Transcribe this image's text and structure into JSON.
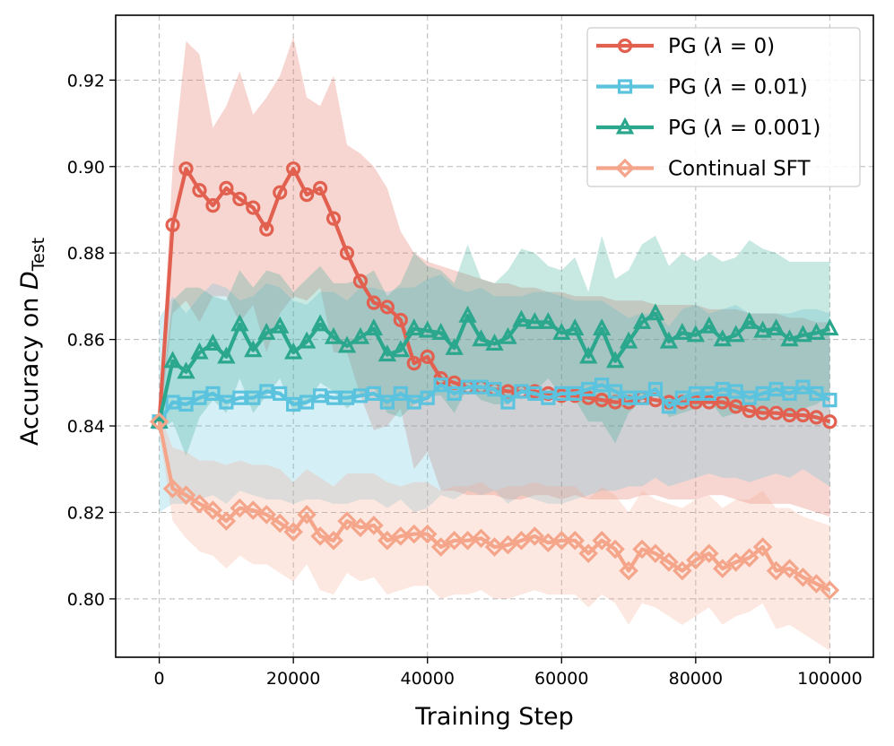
{
  "chart_data": {
    "type": "line",
    "title": "",
    "xlabel": "Training Step",
    "ylabel": {
      "base": "Accuracy on ",
      "symbol": "D",
      "subscript": "Test"
    },
    "xlim": [
      -6500,
      106500
    ],
    "ylim": [
      0.7865,
      0.935
    ],
    "xticks": [
      0,
      20000,
      40000,
      60000,
      80000,
      100000
    ],
    "xtick_labels": [
      "0",
      "20000",
      "40000",
      "60000",
      "80000",
      "100000"
    ],
    "yticks": [
      0.8,
      0.82,
      0.84,
      0.86,
      0.88,
      0.9,
      0.92
    ],
    "ytick_labels": [
      "0.80",
      "0.82",
      "0.84",
      "0.86",
      "0.88",
      "0.90",
      "0.92"
    ],
    "grid": true,
    "legend_position": "top-right",
    "x": [
      0,
      2000,
      4000,
      6000,
      8000,
      10000,
      12000,
      14000,
      16000,
      18000,
      20000,
      22000,
      24000,
      26000,
      28000,
      30000,
      32000,
      34000,
      36000,
      38000,
      40000,
      42000,
      44000,
      46000,
      48000,
      50000,
      52000,
      54000,
      56000,
      58000,
      60000,
      62000,
      64000,
      66000,
      68000,
      70000,
      72000,
      74000,
      76000,
      78000,
      80000,
      82000,
      84000,
      86000,
      88000,
      90000,
      92000,
      94000,
      96000,
      98000,
      100000
    ],
    "series": [
      {
        "name": "PG (λ = 0)",
        "legend_parts": [
          "PG (",
          "λ",
          " = 0)"
        ],
        "color": "#e2604f",
        "marker": "circle",
        "values": [
          0.841,
          0.8865,
          0.8995,
          0.8945,
          0.891,
          0.895,
          0.8925,
          0.8905,
          0.8855,
          0.894,
          0.8995,
          0.8935,
          0.895,
          0.888,
          0.88,
          0.8735,
          0.8685,
          0.8675,
          0.8645,
          0.8545,
          0.856,
          0.851,
          0.85,
          0.849,
          0.849,
          0.8485,
          0.848,
          0.848,
          0.848,
          0.8475,
          0.847,
          0.847,
          0.8465,
          0.846,
          0.8455,
          0.8455,
          0.8465,
          0.846,
          0.8455,
          0.8455,
          0.8455,
          0.8455,
          0.8455,
          0.8445,
          0.8435,
          0.843,
          0.843,
          0.8425,
          0.8425,
          0.842,
          0.841
        ],
        "band_upper": [
          0.843,
          0.9,
          0.929,
          0.926,
          0.909,
          0.914,
          0.922,
          0.912,
          0.916,
          0.921,
          0.93,
          0.916,
          0.914,
          0.921,
          0.905,
          0.903,
          0.9,
          0.895,
          0.885,
          0.88,
          0.878,
          0.877,
          0.876,
          0.875,
          0.874,
          0.873,
          0.873,
          0.872,
          0.872,
          0.871,
          0.871,
          0.87,
          0.87,
          0.87,
          0.869,
          0.869,
          0.869,
          0.868,
          0.868,
          0.868,
          0.868,
          0.867,
          0.867,
          0.867,
          0.866,
          0.866,
          0.866,
          0.865,
          0.865,
          0.864,
          0.864
        ],
        "band_lower": [
          0.839,
          0.866,
          0.869,
          0.864,
          0.87,
          0.87,
          0.864,
          0.868,
          0.857,
          0.866,
          0.87,
          0.869,
          0.872,
          0.857,
          0.857,
          0.847,
          0.839,
          0.84,
          0.844,
          0.83,
          0.834,
          0.825,
          0.825,
          0.824,
          0.824,
          0.824,
          0.823,
          0.823,
          0.824,
          0.824,
          0.823,
          0.824,
          0.823,
          0.823,
          0.823,
          0.823,
          0.824,
          0.824,
          0.823,
          0.823,
          0.823,
          0.824,
          0.824,
          0.823,
          0.822,
          0.822,
          0.822,
          0.822,
          0.821,
          0.82,
          0.819
        ]
      },
      {
        "name": "PG (λ = 0.01)",
        "legend_parts": [
          "PG (",
          "λ",
          " = 0.01)"
        ],
        "color": "#5bc3de",
        "marker": "square",
        "values": [
          0.841,
          0.8455,
          0.845,
          0.8465,
          0.8475,
          0.8455,
          0.8465,
          0.8465,
          0.848,
          0.8475,
          0.845,
          0.8455,
          0.847,
          0.8465,
          0.8465,
          0.847,
          0.8475,
          0.8455,
          0.8475,
          0.8455,
          0.8465,
          0.8495,
          0.8475,
          0.849,
          0.849,
          0.8485,
          0.8455,
          0.848,
          0.8475,
          0.8465,
          0.8475,
          0.8475,
          0.8485,
          0.8495,
          0.848,
          0.8465,
          0.8465,
          0.8485,
          0.8445,
          0.8465,
          0.8475,
          0.8475,
          0.8485,
          0.848,
          0.8465,
          0.8475,
          0.8485,
          0.8475,
          0.849,
          0.8475,
          0.846
        ],
        "band_upper": [
          0.865,
          0.87,
          0.866,
          0.87,
          0.873,
          0.872,
          0.869,
          0.87,
          0.873,
          0.872,
          0.869,
          0.868,
          0.871,
          0.871,
          0.869,
          0.872,
          0.872,
          0.871,
          0.872,
          0.872,
          0.874,
          0.875,
          0.872,
          0.871,
          0.872,
          0.87,
          0.87,
          0.87,
          0.871,
          0.871,
          0.87,
          0.869,
          0.869,
          0.869,
          0.867,
          0.865,
          0.866,
          0.866,
          0.863,
          0.867,
          0.868,
          0.866,
          0.867,
          0.868,
          0.866,
          0.866,
          0.866,
          0.866,
          0.867,
          0.867,
          0.866
        ],
        "band_lower": [
          0.82,
          0.822,
          0.822,
          0.823,
          0.824,
          0.822,
          0.825,
          0.824,
          0.823,
          0.823,
          0.822,
          0.823,
          0.823,
          0.822,
          0.822,
          0.823,
          0.823,
          0.821,
          0.823,
          0.82,
          0.821,
          0.824,
          0.823,
          0.825,
          0.824,
          0.825,
          0.822,
          0.824,
          0.823,
          0.822,
          0.822,
          0.823,
          0.824,
          0.825,
          0.825,
          0.826,
          0.826,
          0.828,
          0.826,
          0.827,
          0.828,
          0.829,
          0.828,
          0.828,
          0.827,
          0.828,
          0.829,
          0.828,
          0.83,
          0.828,
          0.826
        ]
      },
      {
        "name": "PG (λ = 0.001)",
        "legend_parts": [
          "PG (",
          "λ",
          " = 0.001)"
        ],
        "color": "#2ba78e",
        "marker": "triangle",
        "values": [
          0.841,
          0.855,
          0.8525,
          0.857,
          0.859,
          0.856,
          0.8635,
          0.8575,
          0.8615,
          0.863,
          0.857,
          0.8595,
          0.8635,
          0.8605,
          0.8585,
          0.8605,
          0.8625,
          0.8565,
          0.8575,
          0.8625,
          0.862,
          0.8615,
          0.858,
          0.8655,
          0.86,
          0.859,
          0.8605,
          0.8645,
          0.864,
          0.864,
          0.8615,
          0.8625,
          0.856,
          0.8625,
          0.855,
          0.8595,
          0.864,
          0.866,
          0.8595,
          0.8615,
          0.861,
          0.863,
          0.86,
          0.861,
          0.864,
          0.862,
          0.8625,
          0.86,
          0.861,
          0.8615,
          0.8625
        ],
        "band_upper": [
          0.843,
          0.869,
          0.872,
          0.872,
          0.87,
          0.869,
          0.876,
          0.872,
          0.876,
          0.875,
          0.871,
          0.874,
          0.877,
          0.873,
          0.873,
          0.874,
          0.876,
          0.87,
          0.873,
          0.88,
          0.877,
          0.876,
          0.873,
          0.882,
          0.874,
          0.873,
          0.876,
          0.881,
          0.88,
          0.877,
          0.876,
          0.879,
          0.871,
          0.884,
          0.874,
          0.876,
          0.882,
          0.884,
          0.877,
          0.88,
          0.878,
          0.88,
          0.878,
          0.879,
          0.883,
          0.881,
          0.88,
          0.878,
          0.878,
          0.878,
          0.878
        ],
        "band_lower": [
          0.839,
          0.841,
          0.833,
          0.842,
          0.846,
          0.843,
          0.851,
          0.843,
          0.847,
          0.851,
          0.843,
          0.845,
          0.85,
          0.848,
          0.844,
          0.847,
          0.849,
          0.843,
          0.842,
          0.845,
          0.847,
          0.847,
          0.843,
          0.849,
          0.846,
          0.845,
          0.845,
          0.848,
          0.848,
          0.851,
          0.847,
          0.846,
          0.841,
          0.841,
          0.836,
          0.843,
          0.846,
          0.848,
          0.842,
          0.843,
          0.844,
          0.846,
          0.842,
          0.843,
          0.845,
          0.843,
          0.845,
          0.842,
          0.844,
          0.845,
          0.847
        ]
      },
      {
        "name": "Continual SFT",
        "legend_parts": [
          "Continual SFT"
        ],
        "color": "#f4a58a",
        "marker": "diamond",
        "values": [
          0.841,
          0.8255,
          0.824,
          0.822,
          0.8205,
          0.818,
          0.821,
          0.8205,
          0.8195,
          0.8175,
          0.8155,
          0.8195,
          0.8145,
          0.8135,
          0.818,
          0.8165,
          0.817,
          0.8135,
          0.8145,
          0.815,
          0.815,
          0.812,
          0.8135,
          0.8135,
          0.814,
          0.812,
          0.8125,
          0.8135,
          0.8145,
          0.813,
          0.8135,
          0.8135,
          0.8105,
          0.8135,
          0.8115,
          0.8065,
          0.8115,
          0.8105,
          0.8085,
          0.8065,
          0.809,
          0.8105,
          0.807,
          0.8085,
          0.8095,
          0.812,
          0.8065,
          0.807,
          0.805,
          0.8035,
          0.802
        ],
        "band_upper": [
          0.843,
          0.835,
          0.834,
          0.832,
          0.832,
          0.831,
          0.832,
          0.831,
          0.831,
          0.83,
          0.827,
          0.83,
          0.828,
          0.826,
          0.829,
          0.829,
          0.829,
          0.827,
          0.826,
          0.827,
          0.827,
          0.825,
          0.826,
          0.826,
          0.827,
          0.825,
          0.826,
          0.826,
          0.827,
          0.826,
          0.826,
          0.826,
          0.823,
          0.826,
          0.824,
          0.82,
          0.825,
          0.823,
          0.822,
          0.821,
          0.823,
          0.824,
          0.821,
          0.823,
          0.823,
          0.825,
          0.821,
          0.821,
          0.819,
          0.818,
          0.817
        ],
        "band_lower": [
          0.839,
          0.818,
          0.814,
          0.811,
          0.81,
          0.807,
          0.81,
          0.808,
          0.808,
          0.806,
          0.804,
          0.808,
          0.802,
          0.801,
          0.806,
          0.804,
          0.805,
          0.801,
          0.802,
          0.803,
          0.803,
          0.8,
          0.801,
          0.801,
          0.802,
          0.8,
          0.8,
          0.801,
          0.802,
          0.801,
          0.801,
          0.801,
          0.798,
          0.801,
          0.799,
          0.794,
          0.799,
          0.798,
          0.796,
          0.794,
          0.796,
          0.798,
          0.794,
          0.796,
          0.797,
          0.799,
          0.793,
          0.794,
          0.792,
          0.79,
          0.788
        ]
      }
    ]
  }
}
